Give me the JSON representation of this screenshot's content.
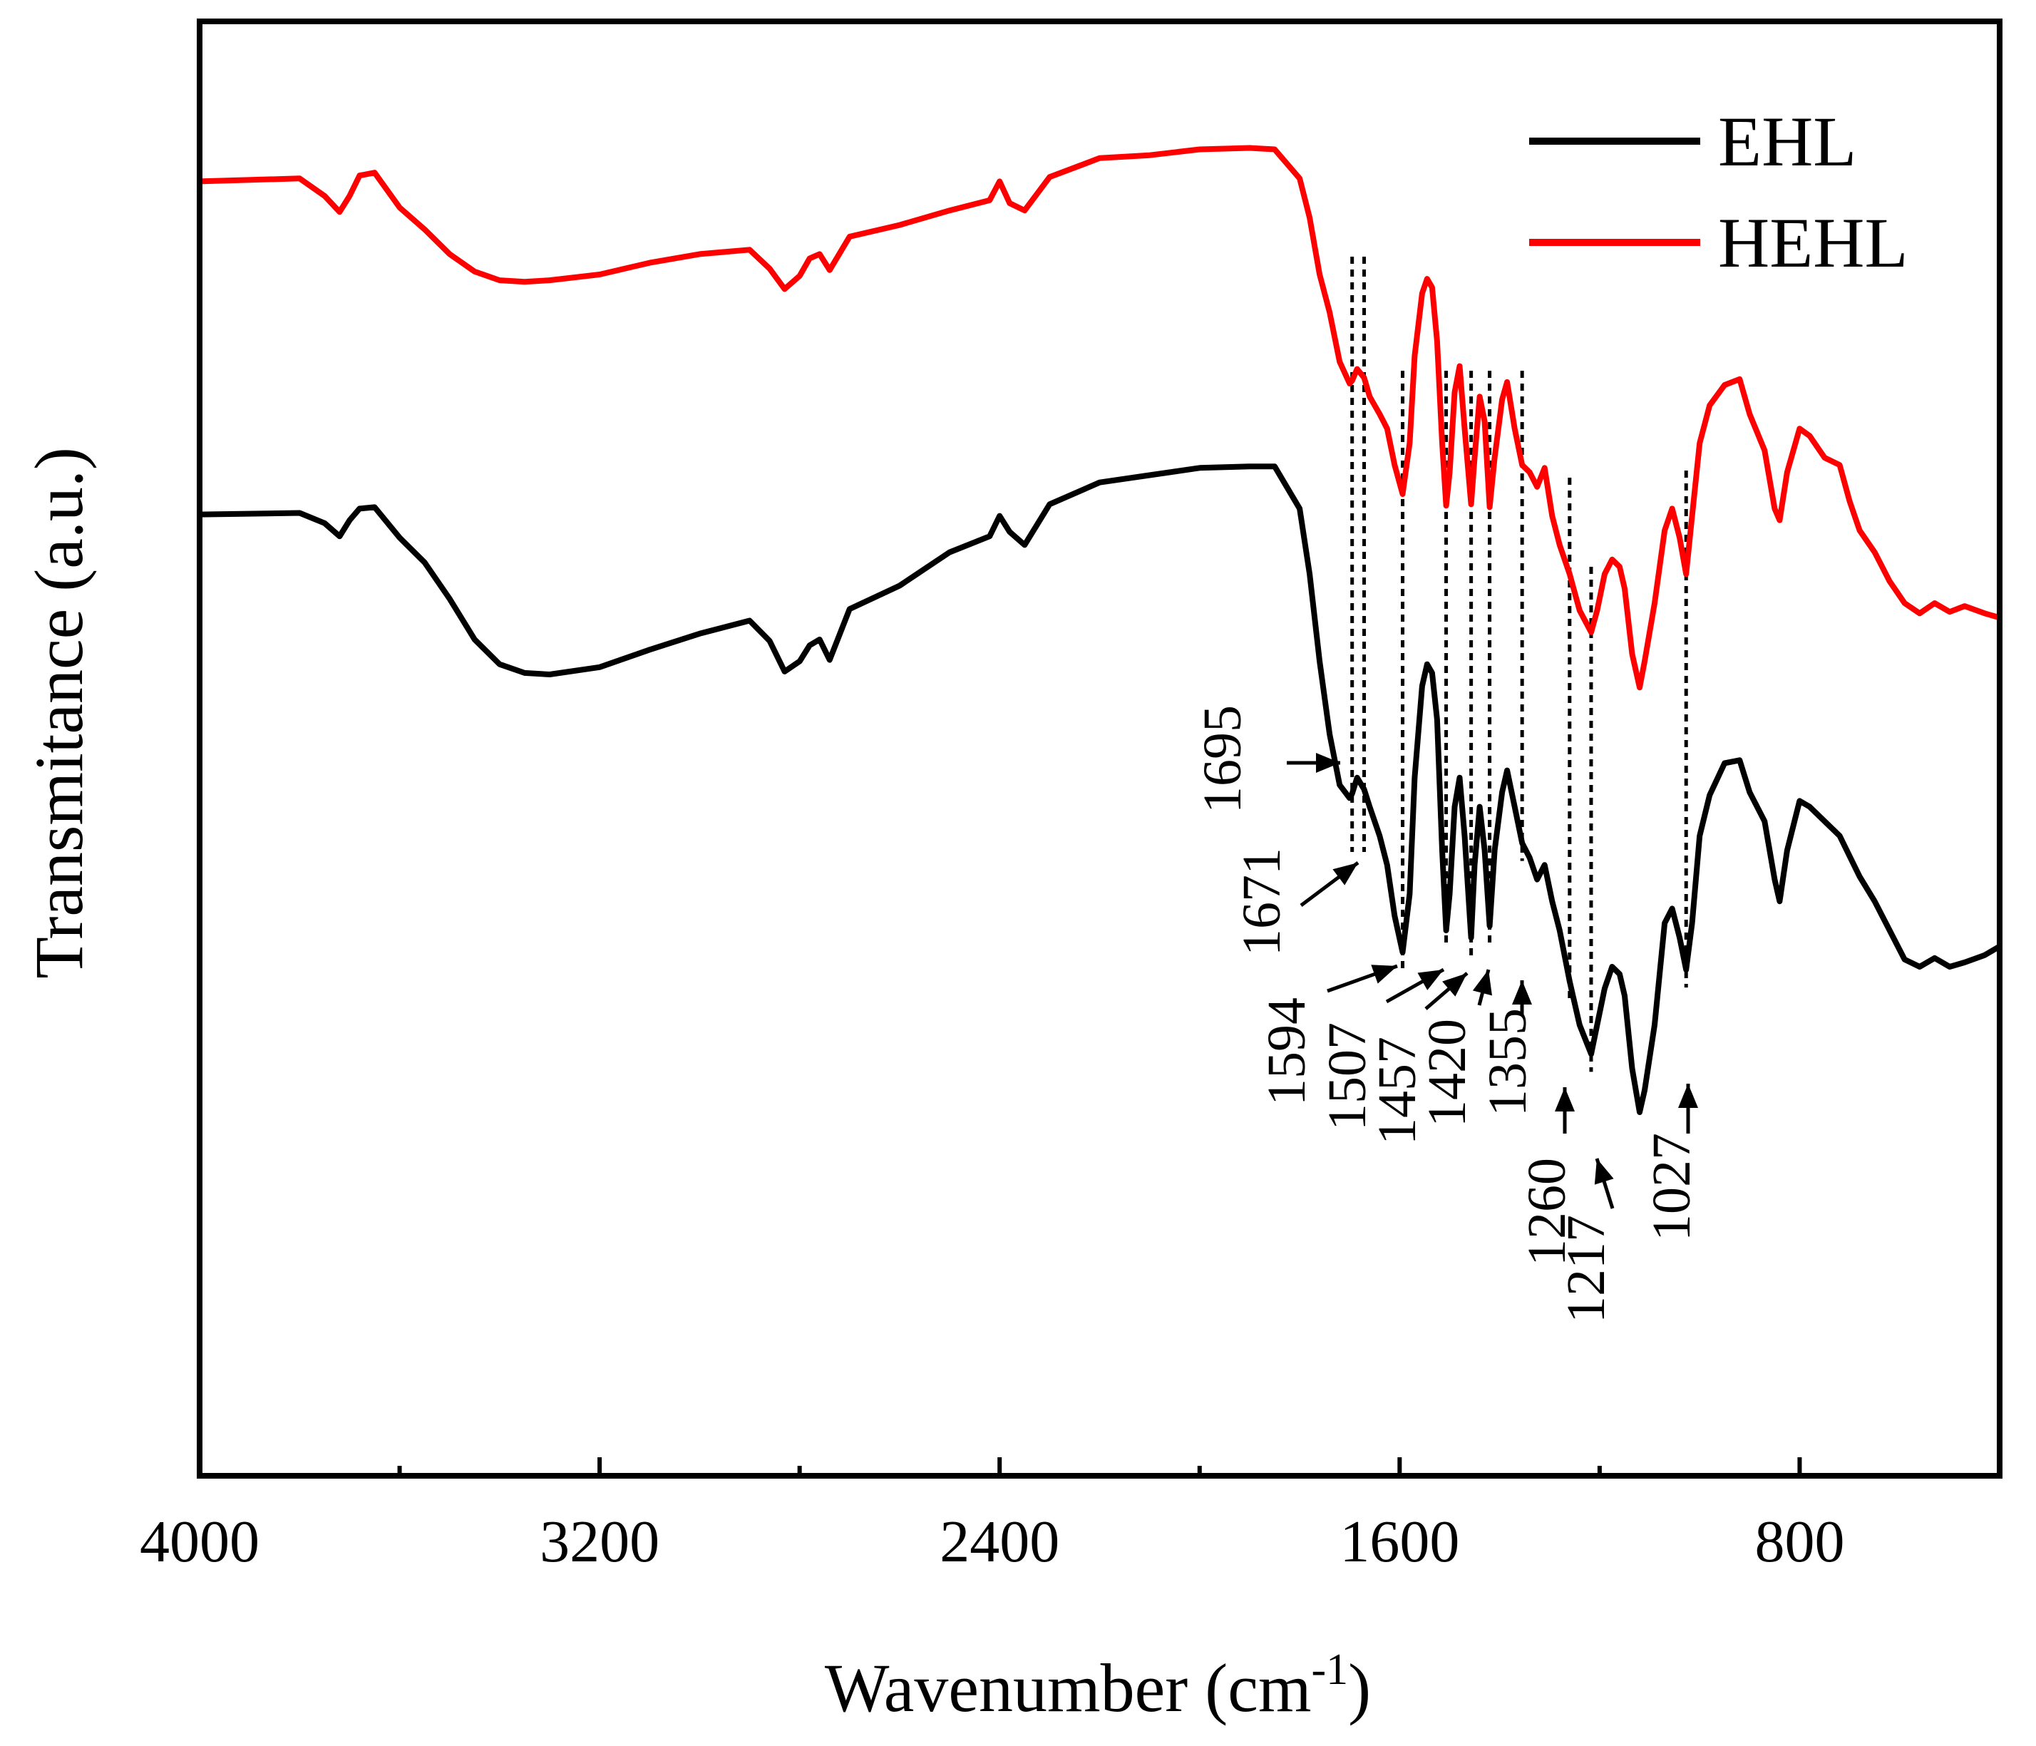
{
  "chart_data": {
    "type": "line",
    "xlabel": "Wavenumber (cm",
    "xlabel_superscript": "-1",
    "xlabel_suffix": ")",
    "ylabel": "Transmitance (a.u.)",
    "xlim": [
      4000,
      400
    ],
    "ylim": [
      0,
      100
    ],
    "xticks": [
      4000,
      3200,
      2400,
      1600,
      800
    ],
    "xtick_labels": [
      "4000",
      "3200",
      "2400",
      "1600",
      "800"
    ],
    "minor_xticks": [
      3600,
      2800,
      2000,
      1200
    ],
    "legend": {
      "position": "top-right",
      "entries": [
        "EHL",
        "HEHL"
      ]
    },
    "series": [
      {
        "name": "EHL",
        "color": "#000000",
        "points": [
          [
            4000,
            66.1
          ],
          [
            3800,
            66.2
          ],
          [
            3750,
            65.5
          ],
          [
            3720,
            64.6
          ],
          [
            3700,
            65.7
          ],
          [
            3680,
            66.5
          ],
          [
            3650,
            66.6
          ],
          [
            3600,
            64.5
          ],
          [
            3550,
            62.8
          ],
          [
            3500,
            60.3
          ],
          [
            3450,
            57.5
          ],
          [
            3400,
            55.8
          ],
          [
            3350,
            55.2
          ],
          [
            3300,
            55.1
          ],
          [
            3200,
            55.6
          ],
          [
            3100,
            56.8
          ],
          [
            3000,
            57.9
          ],
          [
            2900,
            58.8
          ],
          [
            2860,
            57.4
          ],
          [
            2830,
            55.3
          ],
          [
            2800,
            56.0
          ],
          [
            2780,
            57.1
          ],
          [
            2760,
            57.5
          ],
          [
            2740,
            56.1
          ],
          [
            2700,
            59.6
          ],
          [
            2600,
            61.2
          ],
          [
            2500,
            63.5
          ],
          [
            2420,
            64.6
          ],
          [
            2400,
            66.0
          ],
          [
            2380,
            64.9
          ],
          [
            2350,
            64.0
          ],
          [
            2300,
            66.8
          ],
          [
            2200,
            68.3
          ],
          [
            2100,
            68.8
          ],
          [
            2000,
            69.3
          ],
          [
            1900,
            69.4
          ],
          [
            1850,
            69.4
          ],
          [
            1800,
            66.5
          ],
          [
            1780,
            62.0
          ],
          [
            1760,
            56.0
          ],
          [
            1740,
            51.0
          ],
          [
            1720,
            47.5
          ],
          [
            1700,
            46.6
          ],
          [
            1695,
            46.9
          ],
          [
            1685,
            48.0
          ],
          [
            1671,
            47.2
          ],
          [
            1660,
            46.0
          ],
          [
            1640,
            44.0
          ],
          [
            1625,
            42.0
          ],
          [
            1610,
            38.5
          ],
          [
            1594,
            36.0
          ],
          [
            1580,
            40.0
          ],
          [
            1570,
            48.0
          ],
          [
            1555,
            54.3
          ],
          [
            1545,
            55.8
          ],
          [
            1535,
            55.2
          ],
          [
            1525,
            52.0
          ],
          [
            1515,
            43.0
          ],
          [
            1507,
            37.5
          ],
          [
            1500,
            40.0
          ],
          [
            1490,
            46.0
          ],
          [
            1480,
            48.0
          ],
          [
            1470,
            44.0
          ],
          [
            1457,
            37.0
          ],
          [
            1450,
            42.0
          ],
          [
            1440,
            46.0
          ],
          [
            1430,
            43.0
          ],
          [
            1420,
            37.8
          ],
          [
            1410,
            43.0
          ],
          [
            1395,
            47.0
          ],
          [
            1385,
            48.5
          ],
          [
            1370,
            46.0
          ],
          [
            1355,
            43.5
          ],
          [
            1340,
            42.5
          ],
          [
            1325,
            41.0
          ],
          [
            1310,
            42.0
          ],
          [
            1295,
            39.5
          ],
          [
            1280,
            37.5
          ],
          [
            1260,
            34.0
          ],
          [
            1240,
            31.0
          ],
          [
            1217,
            29.0
          ],
          [
            1205,
            31.0
          ],
          [
            1190,
            33.5
          ],
          [
            1175,
            35.0
          ],
          [
            1160,
            34.5
          ],
          [
            1150,
            33.0
          ],
          [
            1135,
            28.0
          ],
          [
            1120,
            25.0
          ],
          [
            1110,
            26.5
          ],
          [
            1090,
            31.0
          ],
          [
            1070,
            38.0
          ],
          [
            1055,
            39.0
          ],
          [
            1040,
            37.0
          ],
          [
            1027,
            34.8
          ],
          [
            1015,
            38.0
          ],
          [
            1000,
            44.0
          ],
          [
            980,
            46.8
          ],
          [
            950,
            49.0
          ],
          [
            920,
            49.2
          ],
          [
            900,
            47.0
          ],
          [
            870,
            45.0
          ],
          [
            850,
            41.0
          ],
          [
            840,
            39.5
          ],
          [
            825,
            43.0
          ],
          [
            800,
            46.4
          ],
          [
            780,
            46.0
          ],
          [
            750,
            45.0
          ],
          [
            720,
            44.0
          ],
          [
            700,
            42.6
          ],
          [
            680,
            41.2
          ],
          [
            650,
            39.5
          ],
          [
            620,
            37.5
          ],
          [
            590,
            35.5
          ],
          [
            560,
            35.0
          ],
          [
            530,
            35.6
          ],
          [
            500,
            35.0
          ],
          [
            470,
            35.3
          ],
          [
            430,
            35.8
          ],
          [
            400,
            36.4
          ]
        ]
      },
      {
        "name": "HEHL",
        "color": "#ff0000",
        "points": [
          [
            4000,
            89.0
          ],
          [
            3800,
            89.2
          ],
          [
            3750,
            88.0
          ],
          [
            3720,
            86.9
          ],
          [
            3700,
            88.0
          ],
          [
            3680,
            89.4
          ],
          [
            3650,
            89.6
          ],
          [
            3600,
            87.2
          ],
          [
            3550,
            85.7
          ],
          [
            3500,
            84.0
          ],
          [
            3450,
            82.8
          ],
          [
            3400,
            82.2
          ],
          [
            3350,
            82.1
          ],
          [
            3300,
            82.2
          ],
          [
            3200,
            82.6
          ],
          [
            3100,
            83.4
          ],
          [
            3000,
            84.0
          ],
          [
            2900,
            84.3
          ],
          [
            2860,
            83.0
          ],
          [
            2830,
            81.6
          ],
          [
            2800,
            82.5
          ],
          [
            2780,
            83.7
          ],
          [
            2760,
            84.0
          ],
          [
            2740,
            82.9
          ],
          [
            2700,
            85.2
          ],
          [
            2600,
            86.0
          ],
          [
            2500,
            87.0
          ],
          [
            2420,
            87.7
          ],
          [
            2400,
            89.0
          ],
          [
            2380,
            87.5
          ],
          [
            2350,
            87.0
          ],
          [
            2300,
            89.3
          ],
          [
            2200,
            90.6
          ],
          [
            2100,
            90.8
          ],
          [
            2000,
            91.2
          ],
          [
            1900,
            91.3
          ],
          [
            1850,
            91.2
          ],
          [
            1800,
            89.2
          ],
          [
            1780,
            86.5
          ],
          [
            1760,
            82.6
          ],
          [
            1740,
            80.0
          ],
          [
            1720,
            76.6
          ],
          [
            1700,
            75.1
          ],
          [
            1695,
            75.3
          ],
          [
            1685,
            76.1
          ],
          [
            1671,
            75.5
          ],
          [
            1660,
            74.2
          ],
          [
            1640,
            73.0
          ],
          [
            1625,
            72.0
          ],
          [
            1610,
            69.5
          ],
          [
            1594,
            67.5
          ],
          [
            1580,
            71.0
          ],
          [
            1570,
            77.0
          ],
          [
            1555,
            81.3
          ],
          [
            1545,
            82.3
          ],
          [
            1535,
            81.7
          ],
          [
            1525,
            78.0
          ],
          [
            1515,
            71.0
          ],
          [
            1507,
            66.7
          ],
          [
            1500,
            69.0
          ],
          [
            1490,
            74.5
          ],
          [
            1480,
            76.3
          ],
          [
            1470,
            72.0
          ],
          [
            1457,
            66.8
          ],
          [
            1450,
            70.0
          ],
          [
            1440,
            74.2
          ],
          [
            1430,
            72.5
          ],
          [
            1420,
            66.6
          ],
          [
            1410,
            70.0
          ],
          [
            1395,
            74.0
          ],
          [
            1385,
            75.2
          ],
          [
            1370,
            72.0
          ],
          [
            1355,
            69.5
          ],
          [
            1340,
            69.0
          ],
          [
            1325,
            68.0
          ],
          [
            1310,
            69.3
          ],
          [
            1295,
            66.0
          ],
          [
            1280,
            64.0
          ],
          [
            1260,
            62.0
          ],
          [
            1240,
            59.5
          ],
          [
            1217,
            58.0
          ],
          [
            1205,
            59.5
          ],
          [
            1190,
            62.0
          ],
          [
            1175,
            63.0
          ],
          [
            1160,
            62.5
          ],
          [
            1150,
            61.0
          ],
          [
            1135,
            56.5
          ],
          [
            1120,
            54.2
          ],
          [
            1110,
            56.0
          ],
          [
            1090,
            60.0
          ],
          [
            1070,
            65.0
          ],
          [
            1055,
            66.5
          ],
          [
            1040,
            64.5
          ],
          [
            1027,
            62.0
          ],
          [
            1015,
            66.0
          ],
          [
            1000,
            71.0
          ],
          [
            980,
            73.6
          ],
          [
            950,
            75.0
          ],
          [
            920,
            75.4
          ],
          [
            900,
            73.0
          ],
          [
            870,
            70.5
          ],
          [
            850,
            66.5
          ],
          [
            840,
            65.7
          ],
          [
            825,
            69.0
          ],
          [
            800,
            72.0
          ],
          [
            780,
            71.5
          ],
          [
            750,
            70.0
          ],
          [
            720,
            69.5
          ],
          [
            700,
            67.0
          ],
          [
            680,
            65.0
          ],
          [
            650,
            63.5
          ],
          [
            620,
            61.5
          ],
          [
            590,
            60.0
          ],
          [
            560,
            59.3
          ],
          [
            530,
            60.0
          ],
          [
            500,
            59.4
          ],
          [
            470,
            59.8
          ],
          [
            430,
            59.3
          ],
          [
            400,
            59.0
          ]
        ]
      }
    ],
    "peaks": [
      {
        "label": "1695",
        "wavenumber": 1695
      },
      {
        "label": "1671",
        "wavenumber": 1671
      },
      {
        "label": "1594",
        "wavenumber": 1594
      },
      {
        "label": "1507",
        "wavenumber": 1507
      },
      {
        "label": "1457",
        "wavenumber": 1457
      },
      {
        "label": "1420",
        "wavenumber": 1420
      },
      {
        "label": "1355",
        "wavenumber": 1355
      },
      {
        "label": "1260",
        "wavenumber": 1260
      },
      {
        "label": "1217",
        "wavenumber": 1217
      },
      {
        "label": "1027",
        "wavenumber": 1027
      }
    ]
  }
}
